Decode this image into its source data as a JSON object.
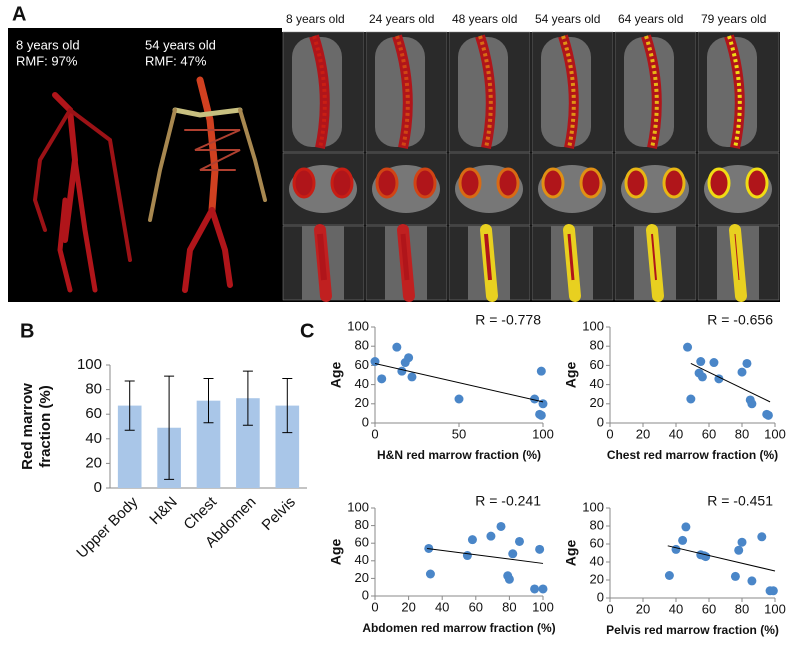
{
  "panel_labels": [
    "A",
    "B",
    "C"
  ],
  "panel_a": {
    "render_labels": [
      {
        "age": "8 years old",
        "rmf": "RMF: 97%"
      },
      {
        "age": "54 years old",
        "rmf": "RMF: 47%"
      }
    ],
    "columns": [
      "8 years old",
      "24 years old",
      "48 years old",
      "54 years old",
      "64 years old",
      "79 years old"
    ]
  },
  "chart_data": [
    {
      "type": "bar",
      "ylabel": [
        "Red marrow",
        "fraction (%)"
      ],
      "categories": [
        "Upper Body",
        "H&N",
        "Chest",
        "Abdomen",
        "Pelvis"
      ],
      "values": [
        67,
        49,
        71,
        73,
        67
      ],
      "errors": [
        20,
        42,
        18,
        22,
        22
      ],
      "color": "#a9c6e8",
      "ylim": [
        0,
        100
      ],
      "yticks": [
        0,
        20,
        40,
        60,
        80,
        100
      ]
    },
    {
      "type": "scatter",
      "annotation": "R = -0.778",
      "xlabel": "H&N red marrow fraction (%)",
      "ylabel": "Age",
      "x": [
        0,
        4,
        13,
        16,
        18,
        20,
        22,
        50,
        95,
        99,
        99,
        100,
        98
      ],
      "y": [
        64,
        46,
        79,
        54,
        63,
        68,
        48,
        25,
        25,
        54,
        8,
        20,
        9
      ],
      "trendline": {
        "x": [
          0,
          100
        ],
        "y": [
          62,
          22
        ]
      },
      "color": "#4a86c8",
      "xlim": [
        0,
        100
      ],
      "ylim": [
        0,
        100
      ],
      "xticks": [
        0,
        50,
        100
      ],
      "yticks": [
        0,
        20,
        40,
        60,
        80,
        100
      ]
    },
    {
      "type": "scatter",
      "annotation": "R = -0.656",
      "xlabel": "Chest red marrow fraction (%)",
      "ylabel": "Age",
      "x": [
        47,
        49,
        54,
        55,
        56,
        63,
        66,
        80,
        83,
        85,
        86,
        95,
        96
      ],
      "y": [
        79,
        25,
        52,
        64,
        48,
        63,
        46,
        53,
        62,
        24,
        20,
        9,
        8
      ],
      "trendline": {
        "x": [
          49,
          97
        ],
        "y": [
          62,
          22
        ]
      },
      "color": "#4a86c8",
      "xlim": [
        0,
        100
      ],
      "ylim": [
        0,
        100
      ],
      "xticks": [
        0,
        20,
        40,
        60,
        80,
        100
      ],
      "yticks": [
        0,
        20,
        40,
        60,
        80,
        100
      ]
    },
    {
      "type": "scatter",
      "annotation": "R = -0.241",
      "xlabel": "Abdomen red marrow fraction (%)",
      "ylabel": "Age",
      "x": [
        32,
        33,
        55,
        58,
        69,
        75,
        79,
        80,
        82,
        86,
        95,
        98,
        100
      ],
      "y": [
        54,
        25,
        46,
        64,
        68,
        79,
        23,
        19,
        48,
        62,
        8,
        53,
        8
      ],
      "trendline": {
        "x": [
          31,
          100
        ],
        "y": [
          54,
          37
        ]
      },
      "color": "#4a86c8",
      "xlim": [
        0,
        100
      ],
      "ylim": [
        0,
        100
      ],
      "xticks": [
        0,
        20,
        40,
        60,
        80,
        100
      ],
      "yticks": [
        0,
        20,
        40,
        60,
        80,
        100
      ]
    },
    {
      "type": "scatter",
      "annotation": "R = -0.451",
      "xlabel": "Pelvis red marrow fraction (%)",
      "ylabel": "Age",
      "x": [
        36,
        40,
        44,
        46,
        55,
        58,
        57,
        76,
        78,
        80,
        86,
        92,
        97,
        99
      ],
      "y": [
        25,
        54,
        64,
        79,
        48,
        46,
        47,
        24,
        53,
        62,
        19,
        68,
        8,
        8
      ],
      "trendline": {
        "x": [
          35,
          100
        ],
        "y": [
          58,
          30
        ]
      },
      "color": "#4a86c8",
      "xlim": [
        0,
        100
      ],
      "ylim": [
        0,
        100
      ],
      "xticks": [
        0,
        20,
        40,
        60,
        80,
        100
      ],
      "yticks": [
        0,
        20,
        40,
        60,
        80,
        100
      ]
    }
  ]
}
